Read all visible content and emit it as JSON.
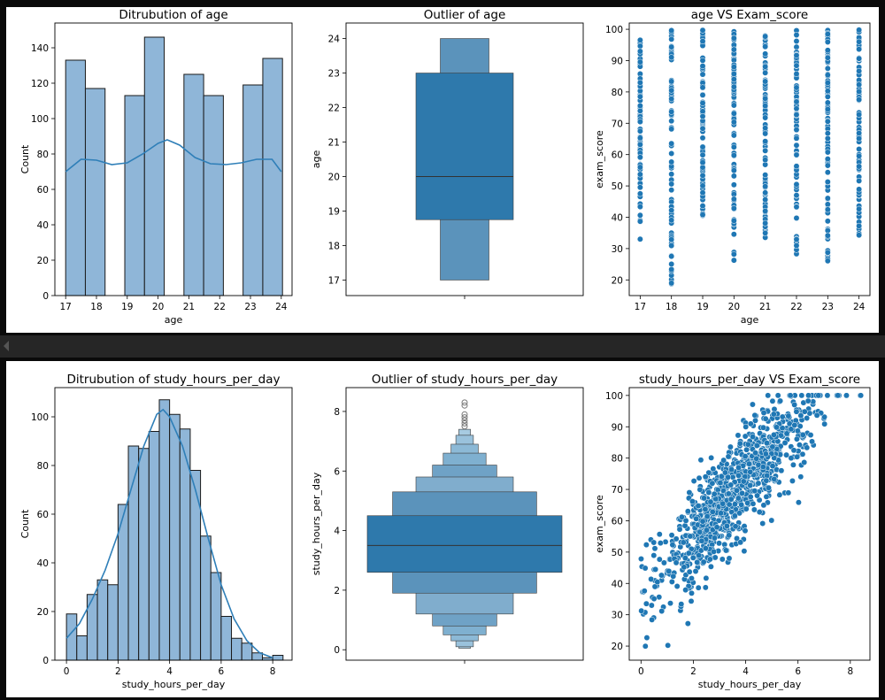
{
  "colors": {
    "hist_fill": "#8fb6d8",
    "hist_edge": "#1a1a1a",
    "kde": "#2f7fb8",
    "box": "#2e79ac",
    "box_light": "#5b93bb",
    "box_lighter": "#80adcd",
    "scatter": "#1f77b4"
  },
  "chart_data": [
    {
      "id": "age-hist",
      "type": "bar",
      "title": "Ditrubution of age",
      "xlabel": "age",
      "ylabel": "Count",
      "xlim": [
        16.65,
        24.35
      ],
      "ylim": [
        0,
        154
      ],
      "xticks": [
        17,
        18,
        19,
        20,
        21,
        22,
        23,
        24
      ],
      "yticks": [
        0,
        20,
        40,
        60,
        80,
        100,
        120,
        140
      ],
      "bins": [
        [
          17,
          17.64,
          133
        ],
        [
          17.64,
          18.28,
          117
        ],
        [
          18.28,
          18.92,
          0
        ],
        [
          18.92,
          19.56,
          113
        ],
        [
          19.56,
          20.2,
          146
        ],
        [
          20.2,
          20.84,
          0
        ],
        [
          20.84,
          21.48,
          125
        ],
        [
          21.48,
          22.12,
          113
        ],
        [
          22.12,
          22.76,
          0
        ],
        [
          22.76,
          23.4,
          119
        ],
        [
          23.4,
          24.04,
          134
        ]
      ],
      "kde": [
        [
          17,
          70
        ],
        [
          17.5,
          77
        ],
        [
          18,
          76.5
        ],
        [
          18.5,
          74
        ],
        [
          19,
          75
        ],
        [
          19.5,
          80
        ],
        [
          20,
          86
        ],
        [
          20.3,
          88
        ],
        [
          20.7,
          85
        ],
        [
          21.2,
          78
        ],
        [
          21.7,
          74.5
        ],
        [
          22.2,
          74
        ],
        [
          22.7,
          75
        ],
        [
          23.2,
          77
        ],
        [
          23.7,
          77
        ],
        [
          24,
          70
        ]
      ]
    },
    {
      "id": "age-box",
      "type": "boxen",
      "title": "Outlier of age",
      "ylabel": "age",
      "ylim": [
        16.55,
        24.45
      ],
      "yticks": [
        17,
        18,
        19,
        20,
        21,
        22,
        23,
        24
      ],
      "median": 20,
      "levels": [
        [
          18.75,
          23,
          0.5
        ],
        [
          17,
          24,
          0.25
        ]
      ],
      "outliers": []
    },
    {
      "id": "age-scatter",
      "type": "scatter",
      "title": "age VS Exam_score",
      "xlabel": "age",
      "ylabel": "exam_score",
      "xlim": [
        16.65,
        24.35
      ],
      "ylim": [
        15,
        102
      ],
      "xticks": [
        17,
        18,
        19,
        20,
        21,
        22,
        23,
        24
      ],
      "yticks": [
        20,
        30,
        40,
        50,
        60,
        70,
        80,
        90,
        100
      ],
      "categories": [
        17,
        18,
        19,
        20,
        21,
        22,
        23,
        24
      ],
      "ranges": [
        [
          33,
          100
        ],
        [
          18.4,
          100
        ],
        [
          40,
          100
        ],
        [
          26,
          100
        ],
        [
          30,
          100
        ],
        [
          28,
          100
        ],
        [
          23,
          100
        ],
        [
          33,
          100
        ]
      ]
    },
    {
      "id": "study-hist",
      "type": "bar",
      "title": "Ditrubution of study_hours_per_day",
      "xlabel": "study_hours_per_day",
      "ylabel": "Count",
      "xlim": [
        -0.45,
        8.75
      ],
      "ylim": [
        0,
        112
      ],
      "xticks": [
        0,
        2,
        4,
        6,
        8
      ],
      "yticks": [
        0,
        20,
        40,
        60,
        80,
        100
      ],
      "bins": [
        [
          0,
          0.4,
          19
        ],
        [
          0.4,
          0.8,
          10
        ],
        [
          0.8,
          1.2,
          27
        ],
        [
          1.2,
          1.6,
          33
        ],
        [
          1.6,
          2.0,
          31
        ],
        [
          2.0,
          2.4,
          64
        ],
        [
          2.4,
          2.8,
          88
        ],
        [
          2.8,
          3.2,
          87
        ],
        [
          3.2,
          3.6,
          94
        ],
        [
          3.6,
          4.0,
          107
        ],
        [
          4.0,
          4.4,
          101
        ],
        [
          4.4,
          4.8,
          95
        ],
        [
          4.8,
          5.2,
          78
        ],
        [
          5.2,
          5.6,
          51
        ],
        [
          5.6,
          6.0,
          36
        ],
        [
          6.0,
          6.4,
          18
        ],
        [
          6.4,
          6.8,
          9
        ],
        [
          6.8,
          7.2,
          7
        ],
        [
          7.2,
          7.6,
          3
        ],
        [
          7.6,
          8.0,
          1
        ],
        [
          8.0,
          8.4,
          2
        ]
      ],
      "kde": [
        [
          0,
          9
        ],
        [
          0.5,
          15
        ],
        [
          1,
          25
        ],
        [
          1.5,
          37
        ],
        [
          2,
          52
        ],
        [
          2.5,
          70
        ],
        [
          3,
          88
        ],
        [
          3.5,
          101
        ],
        [
          3.75,
          103
        ],
        [
          4,
          100
        ],
        [
          4.5,
          88
        ],
        [
          5,
          70
        ],
        [
          5.5,
          50
        ],
        [
          6,
          31
        ],
        [
          6.5,
          17
        ],
        [
          7,
          8
        ],
        [
          7.5,
          3
        ],
        [
          8,
          1
        ]
      ]
    },
    {
      "id": "study-box",
      "type": "boxen",
      "title": "Outlier of study_hours_per_day",
      "ylabel": "study_hours_per_day",
      "ylim": [
        -0.35,
        8.8
      ],
      "yticks": [
        0,
        2,
        4,
        6,
        8
      ],
      "median": 3.5,
      "levels": [
        [
          2.6,
          4.5,
          1.0
        ],
        [
          1.9,
          5.3,
          0.74
        ],
        [
          1.2,
          5.8,
          0.5
        ],
        [
          0.8,
          6.2,
          0.33
        ],
        [
          0.5,
          6.6,
          0.22
        ],
        [
          0.3,
          6.9,
          0.14
        ],
        [
          0.1,
          7.2,
          0.09
        ],
        [
          0.05,
          7.4,
          0.06
        ]
      ],
      "outliers": [
        7.5,
        7.6,
        7.7,
        7.8,
        7.9,
        8.2,
        8.3
      ]
    },
    {
      "id": "study-scatter",
      "type": "scatter",
      "title": "study_hours_per_day VS Exam_score",
      "xlabel": "study_hours_per_day",
      "ylabel": "exam_score",
      "xlim": [
        -0.45,
        8.75
      ],
      "ylim": [
        15.5,
        102.5
      ],
      "xticks": [
        0,
        2,
        4,
        6,
        8
      ],
      "yticks": [
        20,
        30,
        40,
        50,
        60,
        70,
        80,
        90,
        100
      ],
      "trend": {
        "intercept": 35,
        "slope": 9.5,
        "spread": 8
      }
    }
  ]
}
